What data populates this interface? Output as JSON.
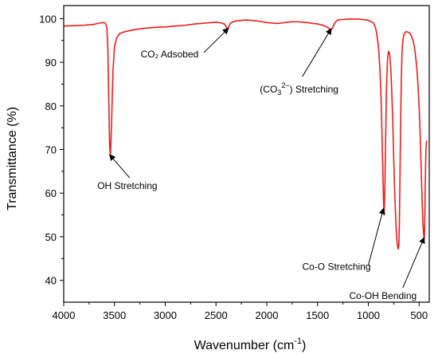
{
  "chart_data": {
    "type": "line",
    "title": "",
    "xlabel": "Wavenumber (cm",
    "xlabel_sup": "-1",
    "xlabel_tail": ")",
    "ylabel": "Transmittance (%)",
    "xlim": [
      4000,
      400
    ],
    "ylim": [
      35,
      103
    ],
    "x_reversed": true,
    "xticks": [
      4000,
      3500,
      3000,
      2500,
      2000,
      1500,
      1000,
      500
    ],
    "yticks": [
      40,
      50,
      60,
      70,
      80,
      90,
      100
    ],
    "grid": false,
    "legend": "none",
    "line_color": "#ee1c1c",
    "series": [
      {
        "x": [
          4000,
          3900,
          3800,
          3700,
          3650,
          3610,
          3590,
          3575,
          3565,
          3555,
          3548,
          3540,
          3530,
          3515,
          3500,
          3480,
          3450,
          3400,
          3300,
          3200,
          3100,
          3000,
          2900,
          2800,
          2700,
          2600,
          2550,
          2500,
          2450,
          2420,
          2400,
          2390,
          2380,
          2370,
          2360,
          2340,
          2300,
          2250,
          2200,
          2150,
          2100,
          2050,
          2000,
          1950,
          1900,
          1850,
          1800,
          1750,
          1700,
          1650,
          1600,
          1550,
          1500,
          1450,
          1420,
          1400,
          1380,
          1370,
          1360,
          1350,
          1340,
          1320,
          1300,
          1270,
          1250,
          1200,
          1150,
          1100,
          1050,
          1000,
          970,
          950,
          935,
          920,
          905,
          895,
          885,
          875,
          868,
          862,
          855,
          850,
          845,
          838,
          830,
          820,
          810,
          800,
          790,
          780,
          770,
          760,
          750,
          740,
          730,
          722,
          715,
          710,
          705,
          700,
          695,
          690,
          685,
          680,
          675,
          670,
          665,
          660,
          650,
          640,
          630,
          620,
          610,
          600,
          590,
          580,
          570,
          560,
          550,
          540,
          530,
          520,
          510,
          500,
          490,
          480,
          470,
          462,
          455,
          450,
          448,
          445,
          443,
          440,
          436,
          433,
          430,
          427,
          425
        ],
        "values": [
          98.3,
          98.4,
          98.5,
          98.7,
          99.0,
          99.1,
          99.0,
          98.0,
          93.0,
          80.0,
          71.0,
          68.5,
          75.0,
          88.0,
          93.5,
          95.5,
          96.6,
          97.0,
          97.5,
          97.8,
          98.0,
          98.1,
          98.3,
          98.5,
          98.8,
          99.0,
          99.1,
          99.2,
          99.0,
          98.8,
          98.2,
          97.5,
          97.9,
          98.4,
          98.9,
          99.2,
          99.5,
          99.6,
          99.7,
          99.6,
          99.5,
          99.3,
          99.1,
          99.0,
          98.9,
          99.0,
          99.2,
          99.3,
          99.3,
          99.2,
          99.1,
          98.9,
          98.8,
          98.5,
          98.2,
          98.0,
          97.6,
          97.5,
          97.6,
          98.0,
          98.6,
          99.3,
          99.7,
          99.8,
          99.8,
          99.9,
          99.9,
          99.9,
          99.8,
          99.6,
          99.3,
          99.0,
          98.3,
          97.0,
          94.5,
          92.0,
          88.0,
          82.0,
          76.0,
          70.0,
          63.0,
          58.0,
          55.0,
          60.0,
          72.0,
          85.0,
          91.0,
          92.5,
          92.0,
          89.0,
          84.0,
          77.0,
          68.0,
          60.0,
          54.0,
          50.0,
          48.5,
          47.5,
          47.2,
          48.0,
          52.0,
          60.0,
          70.0,
          79.0,
          86.0,
          91.0,
          93.5,
          95.0,
          96.3,
          96.8,
          97.0,
          97.0,
          96.9,
          96.8,
          96.6,
          96.2,
          95.7,
          95.0,
          94.0,
          92.5,
          90.5,
          88.0,
          84.5,
          80.0,
          74.0,
          66.0,
          58.0,
          53.0,
          50.5,
          49.5,
          49.8,
          52.0,
          56.0,
          61.0,
          66.0,
          69.5,
          71.0,
          71.8,
          72.0
        ]
      }
    ],
    "annotations": [
      {
        "text": "OH Stretching",
        "point_x": 3548,
        "point_y": 68.8,
        "label_x": 3350,
        "label_y": 63.5
      },
      {
        "text": "CO₂ Adsobed",
        "point_x": 2378,
        "point_y": 97.8,
        "label_x": 2620,
        "label_y": 92.2
      },
      {
        "text": "Co-O Stretching",
        "point_x": 850,
        "point_y": 56.5,
        "label_x": 1000,
        "label_y": 43.5
      },
      {
        "text": "Co-OH Bending",
        "point_x": 450,
        "point_y": 49.8,
        "label_x": 660,
        "label_y": 38.3
      }
    ],
    "annotation_carbonate": {
      "open": "(CO",
      "sub": "3",
      "sup": "2−",
      "close": ") Stretching",
      "point_x": 1365,
      "point_y": 97.7,
      "label_x": 1650,
      "label_y": 86.7
    }
  }
}
